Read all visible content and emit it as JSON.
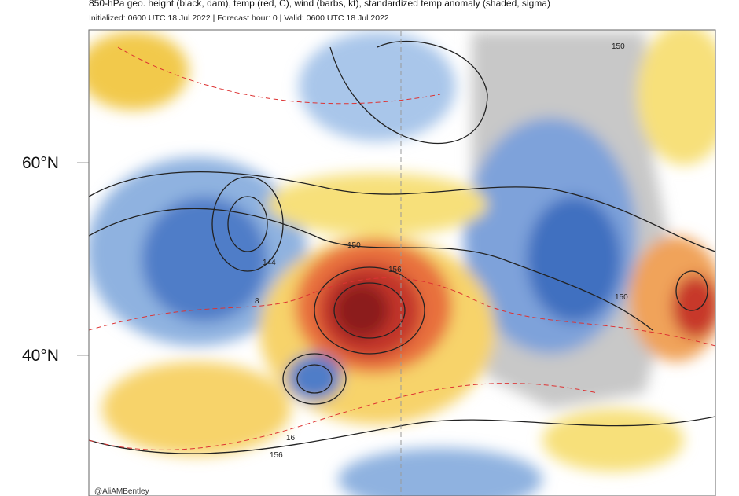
{
  "header": {
    "title": "850-hPa geo. height (black, dam), temp (red, C), wind (barbs, kt), standardized temp anomaly (shaded, sigma)",
    "subtitle": "Initialized: 0600 UTC 18 Jul 2022 | Forecast hour: 0 | Valid: 0600 UTC 18 Jul 2022"
  },
  "latitude_labels": [
    "60°N",
    "40°N"
  ],
  "contour_labels": [
    "150",
    "150",
    "156",
    "144",
    "150",
    "156",
    "16",
    "8"
  ],
  "credit": "@AliAMBentley"
}
